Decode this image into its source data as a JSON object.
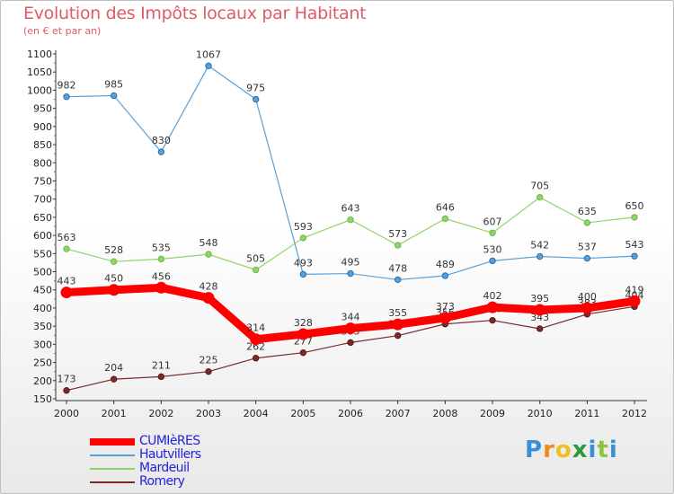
{
  "title": "Evolution des Impôts locaux par Habitant",
  "subtitle": "(en € et par an)",
  "logo": {
    "letters": [
      "P",
      "r",
      "o",
      "x",
      "i",
      "t",
      "i"
    ],
    "colors": [
      "#3a8fd6",
      "#f08a1c",
      "#f0c020",
      "#2a9a3a",
      "#3a8fd6",
      "#8bc43f",
      "#3a8fd6"
    ]
  },
  "chart_data": {
    "type": "line",
    "title": "Evolution des Impôts locaux par Habitant",
    "subtitle": "(en € et par an)",
    "x": [
      "2000",
      "2001",
      "2002",
      "2003",
      "2004",
      "2005",
      "2006",
      "2007",
      "2008",
      "2009",
      "2010",
      "2011",
      "2012"
    ],
    "ylim": [
      150,
      1100
    ],
    "yticks": [
      150,
      200,
      250,
      300,
      350,
      400,
      450,
      500,
      550,
      600,
      650,
      700,
      750,
      800,
      850,
      900,
      950,
      1000,
      1050,
      1100
    ],
    "grid": false,
    "legend_position": "bottom-left",
    "series": [
      {
        "name": "Hautvillers",
        "color": "#5a9fd4",
        "emphasis": false,
        "values": [
          982,
          985,
          830,
          1067,
          975,
          493,
          495,
          478,
          489,
          530,
          542,
          537,
          543
        ]
      },
      {
        "name": "Mardeuil",
        "color": "#8fd46a",
        "emphasis": false,
        "values": [
          563,
          528,
          535,
          548,
          505,
          593,
          643,
          573,
          646,
          607,
          705,
          635,
          650
        ]
      },
      {
        "name": "Romery",
        "color": "#7a2a2a",
        "emphasis": false,
        "values": [
          173,
          204,
          211,
          225,
          262,
          277,
          305,
          324,
          356,
          366,
          343,
          383,
          404
        ]
      },
      {
        "name": "CUMIèRES",
        "color": "#ff0000",
        "emphasis": true,
        "values": [
          443,
          450,
          456,
          428,
          314,
          328,
          344,
          355,
          373,
          402,
          395,
          400,
          419
        ]
      }
    ],
    "legend_order": [
      "CUMIèRES",
      "Hautvillers",
      "Mardeuil",
      "Romery"
    ]
  }
}
